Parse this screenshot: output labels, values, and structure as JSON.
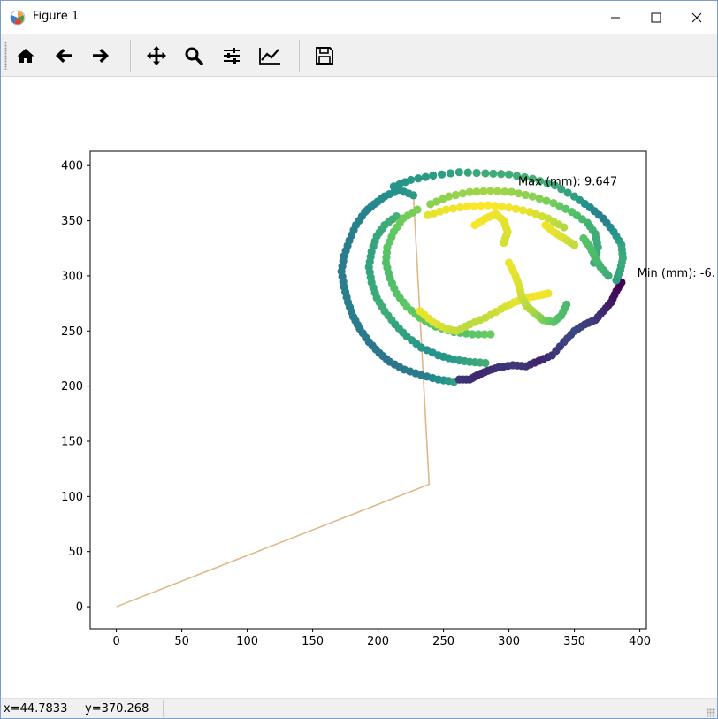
{
  "window": {
    "title": "Figure 1"
  },
  "toolbar": {
    "buttons": [
      {
        "name": "home-button",
        "icon": "home-icon",
        "tooltip": "Home"
      },
      {
        "name": "back-button",
        "icon": "arrow-left-icon",
        "tooltip": "Back"
      },
      {
        "name": "forward-button",
        "icon": "arrow-right-icon",
        "tooltip": "Forward"
      },
      {
        "name": "pan-button",
        "icon": "move-icon",
        "tooltip": "Pan"
      },
      {
        "name": "zoom-button",
        "icon": "magnifier-icon",
        "tooltip": "Zoom"
      },
      {
        "name": "subplots-button",
        "icon": "sliders-icon",
        "tooltip": "Subplots"
      },
      {
        "name": "customize-button",
        "icon": "line-chart-icon",
        "tooltip": "Customize"
      },
      {
        "name": "save-button",
        "icon": "floppy-disk-icon",
        "tooltip": "Save"
      }
    ]
  },
  "status": {
    "x": "x=44.7833",
    "y": "y=370.268"
  },
  "chart_data": {
    "type": "scatter",
    "title": "",
    "xlabel": "",
    "ylabel": "",
    "xlim": [
      -20,
      405
    ],
    "ylim": [
      -20,
      413
    ],
    "xticks": [
      0,
      50,
      100,
      150,
      200,
      250,
      300,
      350,
      400
    ],
    "yticks": [
      0,
      50,
      100,
      150,
      200,
      250,
      300,
      350,
      400
    ],
    "grid": false,
    "colormap": "viridis",
    "colorbar_range_mm": [
      -6.0,
      9.647
    ],
    "annotations": [
      {
        "text": "Max (mm): 9.647",
        "x": 307,
        "y": 382
      },
      {
        "text": "Min (mm): -6.",
        "x": 398,
        "y": 299
      }
    ],
    "path_line": {
      "color": "#deb887",
      "points": [
        [
          0,
          0
        ],
        [
          239,
          111
        ],
        [
          227,
          373
        ]
      ]
    },
    "series": [
      {
        "points": [
          [
            227,
            373
          ],
          [
            216,
            378
          ],
          [
            205,
            372
          ],
          [
            197,
            365
          ],
          [
            190,
            358
          ],
          [
            183,
            346
          ],
          [
            178,
            332
          ],
          [
            174,
            318
          ],
          [
            172,
            304
          ],
          [
            174,
            290
          ],
          [
            177,
            276
          ],
          [
            181,
            263
          ],
          [
            186,
            252
          ],
          [
            193,
            240
          ],
          [
            201,
            230
          ],
          [
            209,
            222
          ],
          [
            220,
            215
          ],
          [
            233,
            210
          ],
          [
            246,
            206
          ],
          [
            258,
            204
          ]
        ],
        "color_values": [
          2.5,
          2.0,
          1.6,
          1.3,
          1.0,
          0.8,
          0.6,
          0.6,
          0.5,
          0.6,
          0.7,
          0.6,
          0.5,
          0.3,
          0.2,
          0.1,
          0.3,
          0.6,
          1.5,
          2.8
        ]
      },
      {
        "points": [
          [
            262,
            206
          ],
          [
            270,
            206
          ],
          [
            276,
            210
          ],
          [
            284,
            214
          ],
          [
            292,
            217
          ],
          [
            303,
            219
          ],
          [
            313,
            218
          ],
          [
            323,
            223
          ],
          [
            333,
            228
          ],
          [
            342,
            240
          ],
          [
            350,
            250
          ],
          [
            358,
            256
          ],
          [
            366,
            260
          ],
          [
            372,
            268
          ],
          [
            378,
            276
          ],
          [
            382,
            286
          ],
          [
            386,
            294
          ]
        ],
        "color_values": [
          -3.5,
          -3.8,
          -4.2,
          -4.0,
          -3.6,
          -3.3,
          -3.6,
          -4.4,
          -3.6,
          -3.0,
          -2.6,
          -3.0,
          -3.3,
          -4.0,
          -4.8,
          -5.6,
          -6.0
        ]
      },
      {
        "points": [
          [
            382,
            296
          ],
          [
            385,
            305
          ],
          [
            387,
            316
          ],
          [
            386,
            328
          ],
          [
            380,
            340
          ],
          [
            372,
            352
          ],
          [
            362,
            362
          ],
          [
            350,
            372
          ],
          [
            335,
            382
          ],
          [
            318,
            388
          ],
          [
            300,
            392
          ],
          [
            282,
            393
          ],
          [
            262,
            394
          ],
          [
            242,
            391
          ],
          [
            225,
            387
          ],
          [
            212,
            381
          ]
        ],
        "color_values": [
          2.8,
          3.2,
          3.6,
          3.2,
          2.0,
          0.6,
          1.5,
          2.8,
          3.5,
          4.0,
          3.8,
          3.6,
          3.0,
          2.5,
          2.3,
          2.0
        ]
      },
      {
        "points": [
          [
            214,
            354
          ],
          [
            205,
            346
          ],
          [
            199,
            336
          ],
          [
            195,
            322
          ],
          [
            193,
            308
          ],
          [
            195,
            294
          ],
          [
            199,
            280
          ],
          [
            205,
            268
          ],
          [
            213,
            256
          ],
          [
            222,
            245
          ],
          [
            233,
            235
          ],
          [
            246,
            228
          ],
          [
            258,
            224
          ],
          [
            270,
            222
          ],
          [
            282,
            221
          ]
        ],
        "color_values": [
          4.0,
          3.6,
          3.3,
          3.0,
          3.0,
          3.3,
          3.6,
          3.8,
          3.2,
          2.8,
          2.2,
          2.0,
          2.5,
          3.2,
          3.8
        ]
      },
      {
        "points": [
          [
            230,
            360
          ],
          [
            219,
            352
          ],
          [
            212,
            340
          ],
          [
            207,
            326
          ],
          [
            206,
            312
          ],
          [
            209,
            298
          ],
          [
            214,
            284
          ],
          [
            222,
            272
          ],
          [
            232,
            262
          ],
          [
            244,
            254
          ],
          [
            258,
            249
          ],
          [
            272,
            247
          ],
          [
            286,
            247
          ]
        ],
        "color_values": [
          6.5,
          6.2,
          5.8,
          5.5,
          5.0,
          4.8,
          5.2,
          5.6,
          5.8,
          5.2,
          5.0,
          5.5,
          6.0
        ]
      },
      {
        "points": [
          [
            240,
            365
          ],
          [
            254,
            372
          ],
          [
            270,
            376
          ],
          [
            286,
            377
          ],
          [
            302,
            376
          ],
          [
            318,
            372
          ],
          [
            334,
            366
          ],
          [
            348,
            358
          ],
          [
            360,
            348
          ],
          [
            366,
            338
          ],
          [
            368,
            326
          ],
          [
            365,
            312
          ]
        ],
        "color_values": [
          6.8,
          7.0,
          7.2,
          7.4,
          7.2,
          6.8,
          6.2,
          5.2,
          4.2,
          3.8,
          3.6,
          3.4
        ]
      },
      {
        "points": [
          [
            238,
            355
          ],
          [
            252,
            360
          ],
          [
            268,
            363
          ],
          [
            284,
            364
          ],
          [
            300,
            362
          ],
          [
            316,
            358
          ],
          [
            330,
            352
          ],
          [
            342,
            344
          ]
        ],
        "color_values": [
          9.0,
          9.2,
          9.5,
          9.6,
          9.4,
          9.0,
          8.4,
          7.8
        ]
      },
      {
        "points": [
          [
            232,
            268
          ],
          [
            242,
            258
          ],
          [
            252,
            252
          ],
          [
            260,
            250
          ],
          [
            270,
            256
          ],
          [
            282,
            262
          ],
          [
            294,
            270
          ],
          [
            304,
            276
          ],
          [
            313,
            280
          ],
          [
            322,
            282
          ],
          [
            330,
            284
          ]
        ],
        "color_values": [
          9.2,
          9.0,
          8.6,
          8.2,
          8.0,
          8.2,
          8.6,
          9.0,
          9.2,
          9.4,
          9.3
        ]
      },
      {
        "points": [
          [
            300,
            312
          ],
          [
            305,
            300
          ],
          [
            308,
            290
          ],
          [
            310,
            280
          ],
          [
            314,
            272
          ],
          [
            320,
            266
          ],
          [
            326,
            260
          ],
          [
            334,
            258
          ],
          [
            340,
            264
          ],
          [
            344,
            274
          ]
        ],
        "color_values": [
          9.2,
          9.0,
          8.8,
          8.4,
          8.0,
          7.5,
          6.5,
          5.5,
          4.8,
          4.6
        ]
      },
      {
        "points": [
          [
            296,
            330
          ],
          [
            299,
            340
          ],
          [
            296,
            350
          ],
          [
            290,
            356
          ],
          [
            282,
            352
          ],
          [
            274,
            346
          ]
        ],
        "color_values": [
          8.6,
          8.8,
          9.0,
          9.2,
          9.4,
          9.5
        ]
      },
      {
        "points": [
          [
            328,
            346
          ],
          [
            334,
            340
          ],
          [
            342,
            334
          ],
          [
            350,
            328
          ]
        ],
        "color_values": [
          9.3,
          9.1,
          8.8,
          8.2
        ]
      },
      {
        "points": [
          [
            357,
            334
          ],
          [
            362,
            326
          ],
          [
            366,
            316
          ],
          [
            370,
            308
          ],
          [
            376,
            300
          ]
        ],
        "color_values": [
          5.4,
          5.0,
          4.6,
          4.2,
          3.8
        ]
      }
    ]
  }
}
